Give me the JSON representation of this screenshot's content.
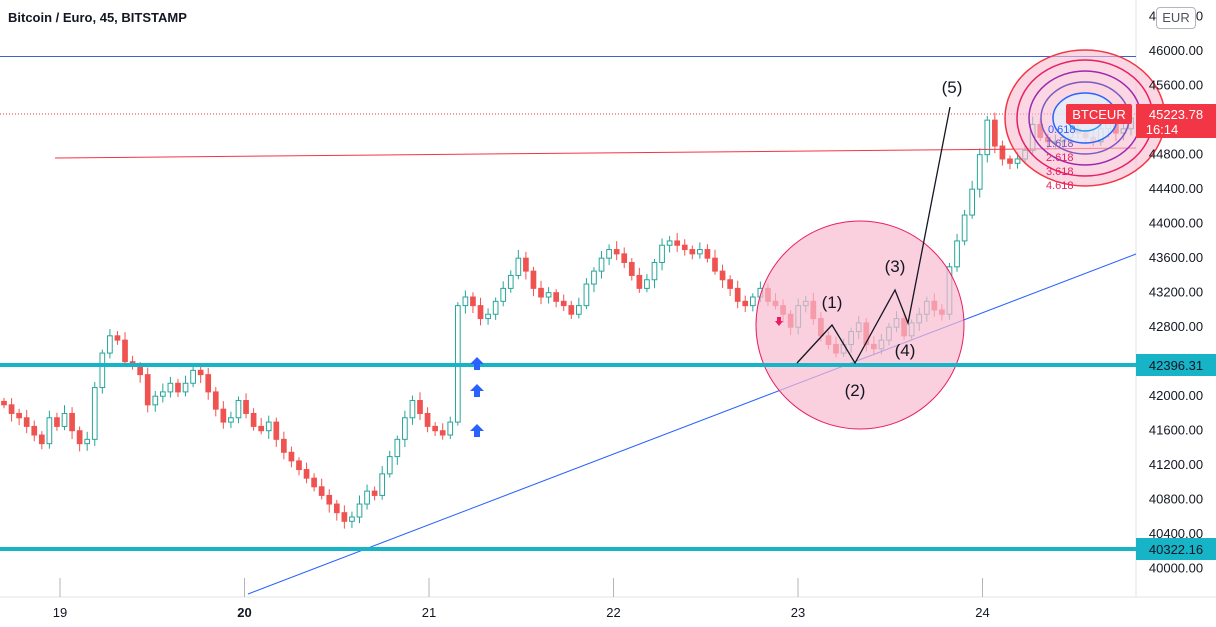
{
  "header": {
    "title": "Bitcoin / Euro, 45, BITSTAMP",
    "currency": "EUR"
  },
  "colors": {
    "up": "#26a69a",
    "down": "#ef5350",
    "support": "#17b3c7",
    "trend": "#2962ff",
    "resistance": "#f23645",
    "top": "#3f5fd1",
    "circle_fill": "#f8bbd0",
    "circle_stroke": "#e91e63",
    "arrow": "#2962ff"
  },
  "chart_data": {
    "type": "candlestick",
    "symbol": "BTCEUR",
    "exchange": "BITSTAMP",
    "interval": "45",
    "x_ticks": [
      "19",
      "20",
      "21",
      "22",
      "23",
      "24"
    ],
    "y_ticks": [
      "46400.00",
      "46000.00",
      "45600.00",
      "45200.00",
      "44800.00",
      "44400.00",
      "44000.00",
      "43600.00",
      "43200.00",
      "42800.00",
      "42400.00",
      "42000.00",
      "41600.00",
      "41200.00",
      "40800.00",
      "40400.00",
      "40000.00"
    ],
    "ylim": [
      39800,
      46500
    ],
    "support_levels": [
      {
        "label": "42396.31",
        "value": 42396.31
      },
      {
        "label": "40322.16",
        "value": 40322.16
      }
    ],
    "last_price": {
      "symbol": "BTCEUR",
      "value": "45223.78",
      "countdown": "16:14"
    },
    "elliott_wave_labels": [
      "(1)",
      "(2)",
      "(3)",
      "(4)",
      "(5)"
    ],
    "fib_levels": [
      "0.618",
      "1.618",
      "2.618",
      "3.618",
      "4.618"
    ],
    "grid": false,
    "series": [
      {
        "close": [
          41900,
          41800,
          41750,
          41650,
          41550,
          41450,
          41750,
          41650,
          41800,
          41600,
          41450,
          41500,
          42100,
          42500,
          42700,
          42650,
          42400,
          42350,
          42250,
          41900,
          42000,
          42050,
          42150,
          42050,
          42150,
          42300,
          42250,
          42050,
          41850,
          41700,
          41750,
          41950,
          41800,
          41650,
          41600,
          41700,
          41500,
          41350,
          41250,
          41150,
          41050,
          40950,
          40850,
          40750,
          40650,
          40550,
          40600,
          40750,
          40900,
          40850,
          41100,
          41300,
          41500,
          41750,
          41950,
          41800,
          41650,
          41600,
          41550,
          41700,
          43050,
          43150,
          43050,
          42900,
          42950,
          43100,
          43250,
          43400,
          43600,
          43450,
          43250,
          43150,
          43200,
          43100,
          43050,
          42950,
          43050,
          43300,
          43450,
          43600,
          43700,
          43650,
          43550,
          43400,
          43250,
          43350,
          43550,
          43750,
          43800,
          43750,
          43700,
          43650,
          43700,
          43600,
          43450,
          43350,
          43250,
          43100,
          43050,
          43150,
          43250,
          43100,
          43050,
          42950,
          42800,
          43050,
          43100,
          42900,
          42700,
          42600,
          42500,
          42600,
          42750,
          42850,
          42600,
          42550,
          42650,
          42800,
          42900,
          42700,
          42850,
          42950,
          43100,
          43000,
          42950,
          43500,
          43800,
          44100,
          44400,
          44800,
          45200,
          44900,
          44750,
          44700,
          44750,
          44850,
          45150,
          45000,
          44950,
          44950,
          45000,
          45100,
          45050,
          45000,
          44950,
          45100,
          45200,
          45050,
          45100,
          45223.78
        ]
      }
    ]
  }
}
